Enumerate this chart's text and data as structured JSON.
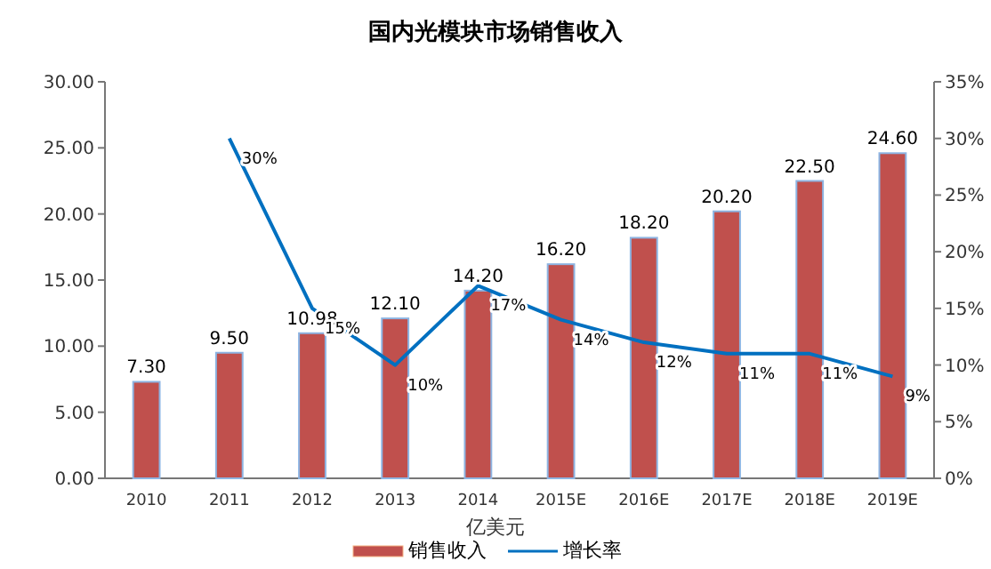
{
  "chart_data": {
    "type": "bar",
    "title": "国内光模块市场销售收入",
    "xlabel": "亿美元",
    "categories": [
      "2010",
      "2011",
      "2012",
      "2013",
      "2014",
      "2015E",
      "2016E",
      "2017E",
      "2018E",
      "2019E"
    ],
    "series": [
      {
        "name": "销售收入",
        "color": "#c0504d",
        "values": [
          7.3,
          9.5,
          10.98,
          12.1,
          14.2,
          16.2,
          18.2,
          20.2,
          22.5,
          24.6
        ],
        "value_labels": [
          "7.30",
          "9.50",
          "10.98",
          "12.10",
          "14.20",
          "16.20",
          "18.20",
          "20.20",
          "22.50",
          "24.60"
        ]
      },
      {
        "name": "增长率",
        "type": "line",
        "axis": "y2",
        "color": "#0070c0",
        "values": [
          null,
          30,
          15,
          10,
          17,
          14,
          12,
          11,
          11,
          9
        ],
        "value_labels": [
          null,
          "30%",
          "15%",
          "10%",
          "17%",
          "14%",
          "12%",
          "11%",
          "11%",
          "9%"
        ]
      }
    ],
    "ylim": [
      0,
      30
    ],
    "yticks": [
      {
        "value": 0,
        "label": "0.00"
      },
      {
        "value": 5,
        "label": "5.00"
      },
      {
        "value": 10,
        "label": "10.00"
      },
      {
        "value": 15,
        "label": "15.00"
      },
      {
        "value": 20,
        "label": "20.00"
      },
      {
        "value": 25,
        "label": "25.00"
      },
      {
        "value": 30,
        "label": "30.00"
      }
    ],
    "y2lim": [
      0,
      35
    ],
    "y2ticks": [
      {
        "value": 0,
        "label": "0%"
      },
      {
        "value": 5,
        "label": "5%"
      },
      {
        "value": 10,
        "label": "10%"
      },
      {
        "value": 15,
        "label": "15%"
      },
      {
        "value": 20,
        "label": "20%"
      },
      {
        "value": 25,
        "label": "25%"
      },
      {
        "value": 30,
        "label": "30%"
      },
      {
        "value": 35,
        "label": "35%"
      }
    ],
    "grid": false,
    "legend": "bottom",
    "marker": "none",
    "line_style": "solid"
  }
}
